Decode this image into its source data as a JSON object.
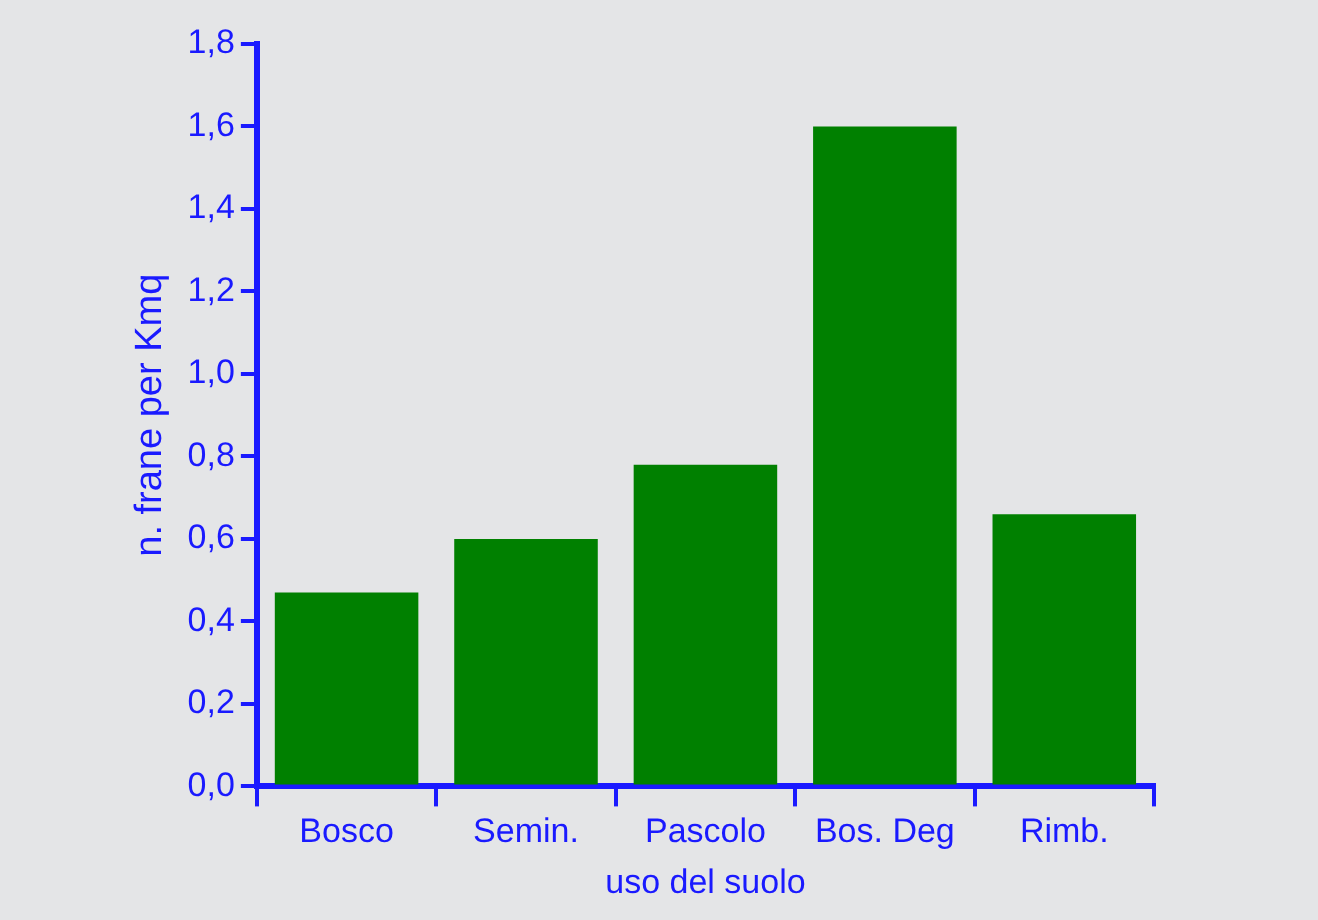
{
  "chart_data": {
    "type": "bar",
    "xlabel": "uso del suolo",
    "ylabel": "n. frane per Kmq",
    "categories": [
      "Bosco",
      "Semin.",
      "Pascolo",
      "Bos. Deg",
      "Rimb."
    ],
    "values": [
      0.47,
      0.6,
      0.78,
      1.6,
      0.66
    ],
    "color": "#008000",
    "ylim": [
      0,
      1.8
    ],
    "yticks": [
      {
        "value": 0,
        "label": "0,0"
      },
      {
        "value": 0.2,
        "label": "0,2"
      },
      {
        "value": 0.4,
        "label": "0,4"
      },
      {
        "value": 0.6,
        "label": "0,6"
      },
      {
        "value": 0.8,
        "label": "0,8"
      },
      {
        "value": 1,
        "label": "1,0"
      },
      {
        "value": 1.2,
        "label": "1,2"
      },
      {
        "value": 1.4,
        "label": "1,4"
      },
      {
        "value": 1.6,
        "label": "1,6"
      },
      {
        "value": 1.8,
        "label": "1,8"
      }
    ],
    "grid": false,
    "legend": false
  }
}
